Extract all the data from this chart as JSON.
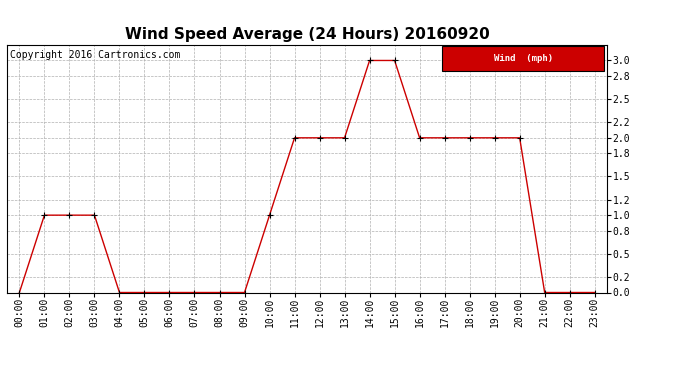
{
  "title": "Wind Speed Average (24 Hours) 20160920",
  "copyright_text": "Copyright 2016 Cartronics.com",
  "legend_label": "Wind  (mph)",
  "legend_bg": "#cc0000",
  "legend_text_color": "#ffffff",
  "line_color": "#cc0000",
  "marker_color": "#000000",
  "background_color": "#ffffff",
  "grid_color": "#b0b0b0",
  "hours": [
    "00:00",
    "01:00",
    "02:00",
    "03:00",
    "04:00",
    "05:00",
    "06:00",
    "07:00",
    "08:00",
    "09:00",
    "10:00",
    "11:00",
    "12:00",
    "13:00",
    "14:00",
    "15:00",
    "16:00",
    "17:00",
    "18:00",
    "19:00",
    "20:00",
    "21:00",
    "22:00",
    "23:00"
  ],
  "values": [
    0.0,
    1.0,
    1.0,
    1.0,
    0.0,
    0.0,
    0.0,
    0.0,
    0.0,
    0.0,
    1.0,
    2.0,
    2.0,
    2.0,
    3.0,
    3.0,
    2.0,
    2.0,
    2.0,
    2.0,
    2.0,
    0.0,
    0.0,
    0.0
  ],
  "ylim": [
    0.0,
    3.2
  ],
  "yticks": [
    0.0,
    0.2,
    0.5,
    0.8,
    1.0,
    1.2,
    1.5,
    1.8,
    2.0,
    2.2,
    2.5,
    2.8,
    3.0
  ],
  "title_fontsize": 11,
  "tick_fontsize": 7,
  "copyright_fontsize": 7,
  "figsize": [
    6.9,
    3.75
  ],
  "dpi": 100
}
